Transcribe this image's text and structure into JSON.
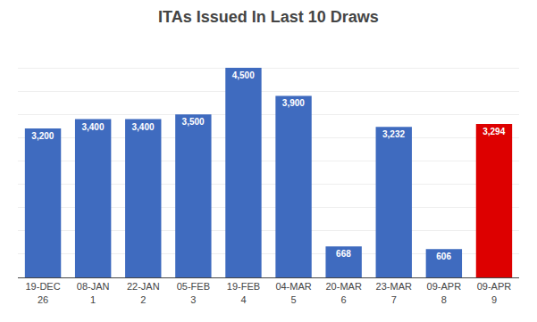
{
  "chart_data": {
    "type": "bar",
    "title": "ITAs Issued In Last 10 Draws",
    "categories": [
      "19-DEC\n26",
      "08-JAN\n1",
      "22-JAN\n2",
      "05-FEB\n3",
      "19-FEB\n4",
      "04-MAR\n5",
      "20-MAR\n6",
      "23-MAR\n7",
      "09-APR\n8",
      "09-APR\n9"
    ],
    "values": [
      3200,
      3400,
      3400,
      3500,
      4500,
      3900,
      668,
      3232,
      606,
      3294
    ],
    "value_labels": [
      "3,200",
      "3,400",
      "3,400",
      "3,500",
      "4,500",
      "3,900",
      "668",
      "3,232",
      "606",
      "3,294"
    ],
    "colors": [
      "#3f6bbf",
      "#3f6bbf",
      "#3f6bbf",
      "#3f6bbf",
      "#3f6bbf",
      "#3f6bbf",
      "#3f6bbf",
      "#3f6bbf",
      "#3f6bbf",
      "#dd0000"
    ],
    "ylim": [
      0,
      5000
    ],
    "yticks": [
      0,
      500,
      1000,
      1500,
      2000,
      2500,
      3000,
      3500,
      4000,
      4500,
      5000
    ],
    "grid": true,
    "data_labels": true,
    "tick_labels": "x"
  }
}
